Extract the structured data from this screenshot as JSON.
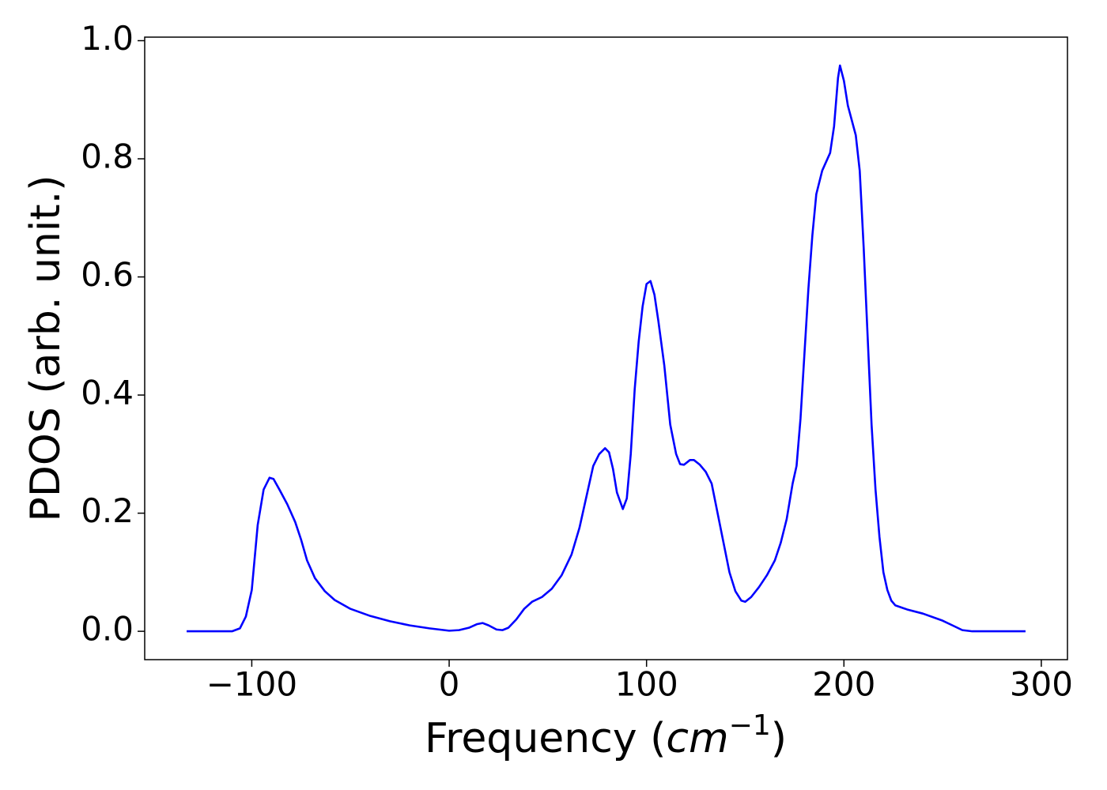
{
  "chart_data": {
    "type": "line",
    "xlabel": {
      "text": "Frequency (",
      "math": "cm",
      "sup": "−1",
      "close": ")"
    },
    "ylabel": "PDOS (arb. unit.)",
    "xlim": [
      -154.25,
      313.25
    ],
    "ylim": [
      -0.048,
      1.006
    ],
    "xticks": [
      {
        "value": -100,
        "label": "−100"
      },
      0,
      100,
      200,
      300
    ],
    "yticks": [
      {
        "value": 0,
        "label": "0.0"
      },
      0.2,
      0.4,
      0.6,
      0.8,
      {
        "value": 1,
        "label": "1.0"
      }
    ],
    "series": [
      {
        "color": "#0000ff",
        "x": [
          -133,
          -110,
          -106,
          -103,
          -100,
          -97,
          -94,
          -91,
          -89,
          -86,
          -82,
          -78,
          -75,
          -72,
          -68,
          -63,
          -58,
          -50,
          -40,
          -30,
          -20,
          -10,
          0,
          5,
          10,
          14,
          17,
          20,
          24,
          27,
          30,
          34,
          38,
          42,
          47,
          52,
          57,
          62,
          66,
          70,
          73,
          76,
          79,
          81,
          83,
          85,
          88,
          90,
          92,
          94,
          96,
          98,
          100,
          102,
          104,
          106,
          109,
          112,
          115,
          117,
          119,
          122,
          124,
          127,
          130,
          133,
          136,
          139,
          142,
          145,
          148,
          150,
          153,
          157,
          161,
          165,
          168,
          171,
          174,
          176,
          178,
          180,
          182,
          184,
          186,
          189,
          193,
          195,
          197,
          198,
          200,
          202,
          206,
          208,
          210,
          212,
          214,
          216,
          218,
          220,
          222,
          224,
          226,
          232,
          240,
          250,
          255,
          260,
          265,
          292
        ],
        "values": [
          0,
          0,
          0.005,
          0.025,
          0.07,
          0.18,
          0.24,
          0.26,
          0.258,
          0.24,
          0.215,
          0.185,
          0.155,
          0.12,
          0.09,
          0.068,
          0.053,
          0.038,
          0.026,
          0.017,
          0.01,
          0.005,
          0.001,
          0.002,
          0.006,
          0.012,
          0.014,
          0.01,
          0.003,
          0.002,
          0.006,
          0.02,
          0.038,
          0.05,
          0.058,
          0.072,
          0.095,
          0.13,
          0.175,
          0.235,
          0.28,
          0.3,
          0.31,
          0.303,
          0.275,
          0.235,
          0.207,
          0.225,
          0.3,
          0.41,
          0.49,
          0.55,
          0.588,
          0.593,
          0.57,
          0.525,
          0.45,
          0.35,
          0.3,
          0.283,
          0.282,
          0.29,
          0.29,
          0.282,
          0.27,
          0.25,
          0.2,
          0.15,
          0.1,
          0.068,
          0.052,
          0.05,
          0.058,
          0.075,
          0.095,
          0.12,
          0.15,
          0.19,
          0.25,
          0.28,
          0.36,
          0.47,
          0.58,
          0.67,
          0.74,
          0.78,
          0.81,
          0.855,
          0.937,
          0.958,
          0.932,
          0.89,
          0.84,
          0.78,
          0.65,
          0.5,
          0.35,
          0.24,
          0.16,
          0.1,
          0.07,
          0.052,
          0.044,
          0.037,
          0.03,
          0.018,
          0.01,
          0.002,
          0,
          0
        ]
      }
    ]
  }
}
